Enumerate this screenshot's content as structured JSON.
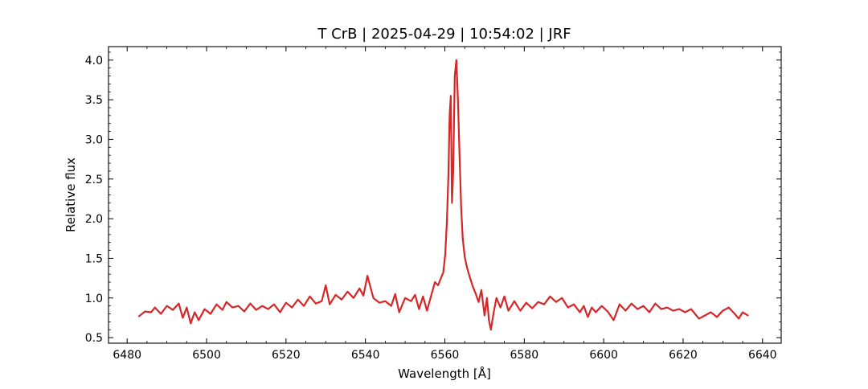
{
  "chart_data": {
    "type": "line",
    "title": "T CrB | 2025-04-29 | 10:54:02 | JRF",
    "xlabel": "Wavelength [Å]",
    "ylabel": "Relative flux",
    "xlim": [
      6475.3,
      6644.7
    ],
    "ylim": [
      0.43,
      4.17
    ],
    "xticks": [
      6480,
      6500,
      6520,
      6540,
      6560,
      6580,
      6600,
      6620,
      6640
    ],
    "yticks": [
      0.5,
      1.0,
      1.5,
      2.0,
      2.5,
      3.0,
      3.5,
      4.0
    ],
    "xtick_labels": [
      "6480",
      "6500",
      "6520",
      "6540",
      "6560",
      "6580",
      "6600",
      "6620",
      "6640"
    ],
    "ytick_labels": [
      "0.5",
      "1.0",
      "1.5",
      "2.0",
      "2.5",
      "3.0",
      "3.5",
      "4.0"
    ],
    "grid": false,
    "legend": "none",
    "series": [
      {
        "color": "#d62728",
        "x": [
          6483.0,
          6484.5,
          6486.0,
          6487.0,
          6488.5,
          6490.0,
          6491.5,
          6493.0,
          6494.0,
          6495.0,
          6496.0,
          6497.0,
          6498.0,
          6499.5,
          6501.0,
          6502.5,
          6504.0,
          6505.0,
          6506.5,
          6508.0,
          6509.5,
          6511.0,
          6512.5,
          6514.0,
          6515.5,
          6517.0,
          6518.5,
          6520.0,
          6521.5,
          6523.0,
          6524.5,
          6526.0,
          6527.5,
          6529.0,
          6530.0,
          6531.0,
          6532.5,
          6534.0,
          6535.5,
          6537.0,
          6538.5,
          6539.5,
          6540.5,
          6542.0,
          6543.5,
          6545.0,
          6546.5,
          6547.5,
          6548.5,
          6550.0,
          6551.5,
          6552.5,
          6553.5,
          6554.5,
          6555.5,
          6556.5,
          6557.5,
          6558.3,
          6559.0,
          6559.6,
          6560.1,
          6560.5,
          6560.9,
          6561.2,
          6561.5,
          6561.8,
          6562.1,
          6562.5,
          6562.9,
          6563.3,
          6563.7,
          6564.1,
          6564.5,
          6565.0,
          6565.6,
          6566.3,
          6567.0,
          6567.8,
          6568.5,
          6569.2,
          6570.0,
          6570.6,
          6571.1,
          6571.6,
          6572.3,
          6573.0,
          6574.0,
          6575.0,
          6576.0,
          6577.5,
          6579.0,
          6580.5,
          6582.0,
          6583.5,
          6585.0,
          6586.5,
          6588.0,
          6589.5,
          6591.0,
          6592.5,
          6594.0,
          6595.0,
          6596.0,
          6597.0,
          6598.0,
          6599.5,
          6601.0,
          6602.5,
          6604.0,
          6605.5,
          6607.0,
          6608.5,
          6610.0,
          6611.5,
          6613.0,
          6614.5,
          6616.0,
          6617.5,
          6619.0,
          6620.5,
          6622.0,
          6623.0,
          6624.0,
          6625.5,
          6627.0,
          6628.5,
          6630.0,
          6631.5,
          6633.0,
          6634.0,
          6635.0,
          6636.3
        ],
        "y": [
          0.77,
          0.83,
          0.82,
          0.88,
          0.8,
          0.9,
          0.85,
          0.93,
          0.75,
          0.88,
          0.68,
          0.82,
          0.72,
          0.86,
          0.8,
          0.92,
          0.85,
          0.95,
          0.88,
          0.9,
          0.83,
          0.93,
          0.85,
          0.9,
          0.86,
          0.92,
          0.82,
          0.94,
          0.88,
          0.98,
          0.9,
          1.02,
          0.93,
          0.96,
          1.16,
          0.92,
          1.04,
          0.98,
          1.08,
          1.0,
          1.12,
          1.03,
          1.28,
          1.0,
          0.94,
          0.96,
          0.9,
          1.05,
          0.82,
          1.0,
          0.96,
          1.04,
          0.86,
          1.02,
          0.84,
          1.02,
          1.2,
          1.16,
          1.25,
          1.32,
          1.55,
          1.95,
          2.55,
          3.3,
          3.55,
          2.2,
          2.6,
          3.8,
          4.0,
          3.5,
          2.8,
          2.15,
          1.75,
          1.52,
          1.38,
          1.26,
          1.15,
          1.05,
          0.95,
          1.1,
          0.78,
          1.0,
          0.72,
          0.6,
          0.82,
          1.0,
          0.88,
          1.02,
          0.84,
          0.96,
          0.84,
          0.94,
          0.87,
          0.95,
          0.92,
          1.02,
          0.95,
          1.0,
          0.88,
          0.92,
          0.82,
          0.9,
          0.76,
          0.88,
          0.82,
          0.9,
          0.83,
          0.72,
          0.92,
          0.84,
          0.93,
          0.86,
          0.9,
          0.82,
          0.93,
          0.86,
          0.88,
          0.84,
          0.86,
          0.82,
          0.86,
          0.8,
          0.74,
          0.78,
          0.82,
          0.76,
          0.84,
          0.88,
          0.8,
          0.74,
          0.82,
          0.78
        ]
      }
    ]
  }
}
